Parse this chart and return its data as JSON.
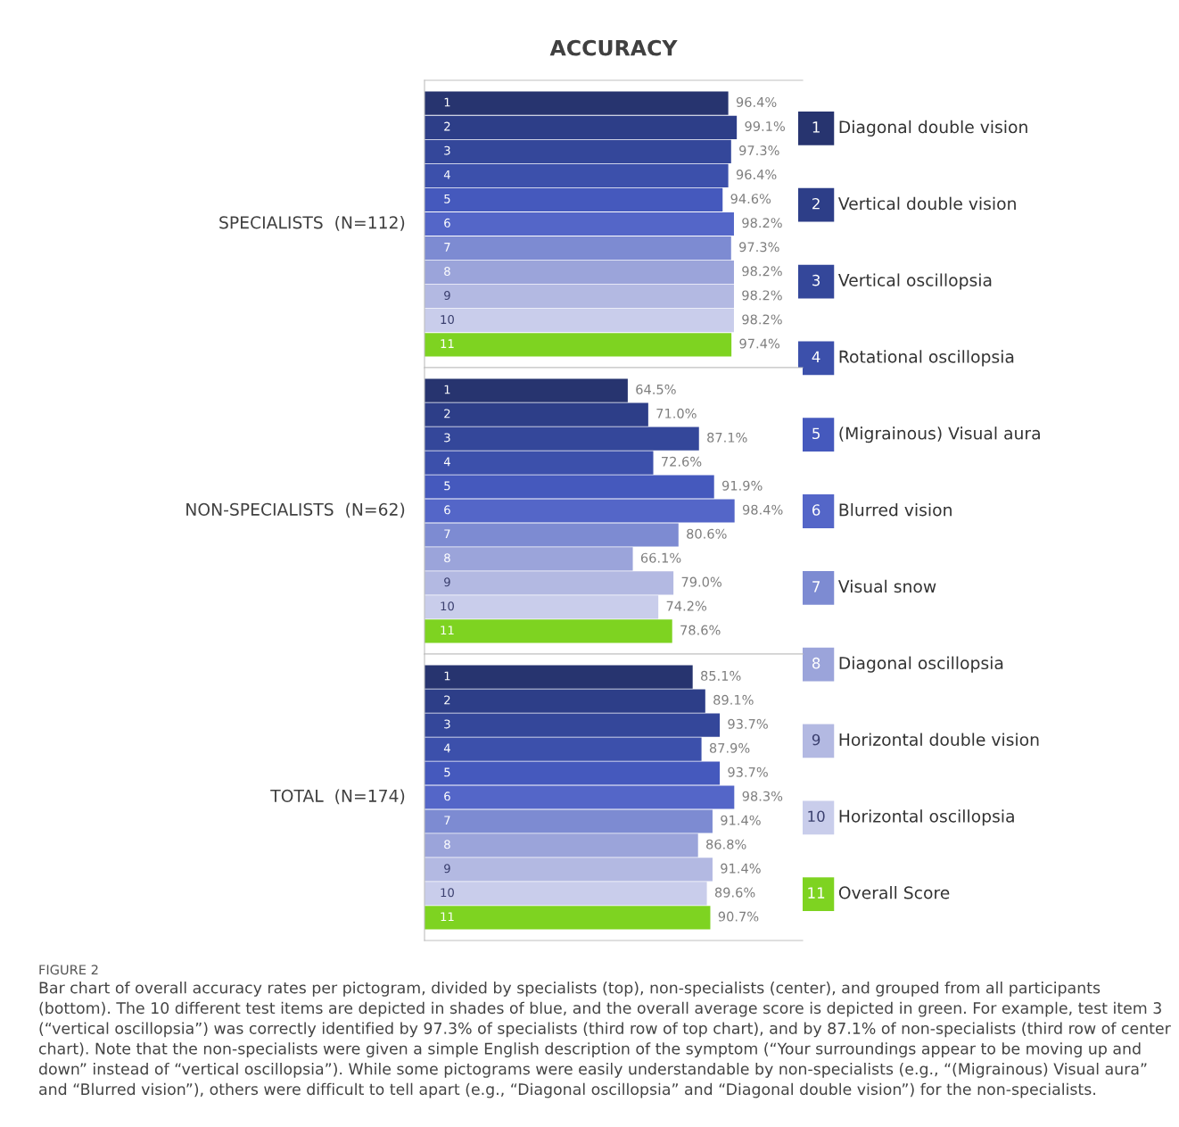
{
  "chart_data": [
    {
      "type": "bar",
      "orientation": "horizontal",
      "title": "ACCURACY",
      "ylabel": "SPECIALISTS  (N=112)",
      "categories": [
        "1",
        "2",
        "3",
        "4",
        "5",
        "6",
        "7",
        "8",
        "9",
        "10",
        "11"
      ],
      "series": [
        {
          "name": "Diagonal double vision",
          "color": "#27346f",
          "values": [
            96.4,
            null,
            null,
            null,
            null,
            null,
            null,
            null,
            null,
            null,
            null
          ],
          "value_labels": [
            "96.4%",
            null,
            null,
            null,
            null,
            null,
            null,
            null,
            null,
            null,
            null
          ]
        },
        {
          "name": "Vertical double vision",
          "color": "#2d3e88",
          "values": [
            null,
            99.1,
            null,
            null,
            null,
            null,
            null,
            null,
            null,
            null,
            null
          ],
          "value_labels": [
            null,
            "99.1%",
            null,
            null,
            null,
            null,
            null,
            null,
            null,
            null,
            null
          ]
        },
        {
          "name": "Vertical oscillopsia",
          "color": "#34479a",
          "values": [
            null,
            null,
            97.3,
            null,
            null,
            null,
            null,
            null,
            null,
            null,
            null
          ],
          "value_labels": [
            null,
            null,
            "97.3%",
            null,
            null,
            null,
            null,
            null,
            null,
            null,
            null
          ]
        },
        {
          "name": "Rotational oscillopsia",
          "color": "#3c50ab",
          "values": [
            null,
            null,
            null,
            96.4,
            null,
            null,
            null,
            null,
            null,
            null,
            null
          ],
          "value_labels": [
            null,
            null,
            null,
            "96.4%",
            null,
            null,
            null,
            null,
            null,
            null,
            null
          ]
        },
        {
          "name": "(Migrainous) Visual aura",
          "color": "#4559bd",
          "values": [
            null,
            null,
            null,
            null,
            94.6,
            null,
            null,
            null,
            null,
            null,
            null
          ],
          "value_labels": [
            null,
            null,
            null,
            null,
            "94.6%",
            null,
            null,
            null,
            null,
            null,
            null
          ]
        },
        {
          "name": "Blurred vision",
          "color": "#5466c8",
          "values": [
            null,
            null,
            null,
            null,
            null,
            98.2,
            null,
            null,
            null,
            null,
            null
          ],
          "value_labels": [
            null,
            null,
            null,
            null,
            null,
            "98.2%",
            null,
            null,
            null,
            null,
            null
          ]
        },
        {
          "name": "Visual snow",
          "color": "#7d8bd2",
          "values": [
            null,
            null,
            null,
            null,
            null,
            null,
            97.3,
            null,
            null,
            null,
            null
          ],
          "value_labels": [
            null,
            null,
            null,
            null,
            null,
            null,
            "97.3%",
            null,
            null,
            null,
            null
          ]
        },
        {
          "name": "Diagonal oscillopsia",
          "color": "#9ba4da",
          "values": [
            null,
            null,
            null,
            null,
            null,
            null,
            null,
            98.2,
            null,
            null,
            null
          ],
          "value_labels": [
            null,
            null,
            null,
            null,
            null,
            null,
            null,
            "98.2%",
            null,
            null,
            null
          ]
        },
        {
          "name": "Horizontal double vision",
          "color": "#b3b9e2",
          "values": [
            null,
            null,
            null,
            null,
            null,
            null,
            null,
            null,
            98.2,
            null,
            null
          ],
          "value_labels": [
            null,
            null,
            null,
            null,
            null,
            null,
            null,
            null,
            "98.2%",
            null,
            null
          ]
        },
        {
          "name": "Horizontal oscillopsia",
          "color": "#c9cdeb",
          "values": [
            null,
            null,
            null,
            null,
            null,
            null,
            null,
            null,
            null,
            98.2,
            null
          ],
          "value_labels": [
            null,
            null,
            null,
            null,
            null,
            null,
            null,
            null,
            null,
            "98.2%",
            null
          ]
        },
        {
          "name": "Overall Score",
          "color": "#7ed321",
          "values": [
            null,
            null,
            null,
            null,
            null,
            null,
            null,
            null,
            null,
            null,
            97.4
          ],
          "value_labels": [
            null,
            null,
            null,
            null,
            null,
            null,
            null,
            null,
            null,
            null,
            "97.4%"
          ]
        }
      ],
      "legend": "right",
      "xlim": [
        0,
        120
      ],
      "tick_labels": false
    },
    {
      "type": "bar",
      "orientation": "horizontal",
      "ylabel": "NON-SPECIALISTS  (N=62)",
      "categories": [
        "1",
        "2",
        "3",
        "4",
        "5",
        "6",
        "7",
        "8",
        "9",
        "10",
        "11"
      ],
      "values": [
        64.5,
        71.0,
        87.1,
        72.6,
        91.9,
        98.4,
        80.6,
        66.1,
        79.0,
        74.2,
        78.6
      ],
      "value_labels": [
        "64.5%",
        "71.0%",
        "87.1%",
        "72.6%",
        "91.9%",
        "98.4%",
        "80.6%",
        "66.1%",
        "79.0%",
        "74.2%",
        "78.6%"
      ],
      "colors": [
        "#27346f",
        "#2d3e88",
        "#34479a",
        "#3c50ab",
        "#4559bd",
        "#5466c8",
        "#7d8bd2",
        "#9ba4da",
        "#b3b9e2",
        "#c9cdeb",
        "#7ed321"
      ],
      "xlim": [
        0,
        120
      ],
      "tick_labels": false
    },
    {
      "type": "bar",
      "orientation": "horizontal",
      "ylabel": "TOTAL  (N=174)",
      "categories": [
        "1",
        "2",
        "3",
        "4",
        "5",
        "6",
        "7",
        "8",
        "9",
        "10",
        "11"
      ],
      "values": [
        85.1,
        89.1,
        93.7,
        87.9,
        93.7,
        98.3,
        91.4,
        86.8,
        91.4,
        89.6,
        90.7
      ],
      "value_labels": [
        "85.1%",
        "89.1%",
        "93.7%",
        "87.9%",
        "93.7%",
        "98.3%",
        "91.4%",
        "86.8%",
        "91.4%",
        "89.6%",
        "90.7%"
      ],
      "colors": [
        "#27346f",
        "#2d3e88",
        "#34479a",
        "#3c50ab",
        "#4559bd",
        "#5466c8",
        "#7d8bd2",
        "#9ba4da",
        "#b3b9e2",
        "#c9cdeb",
        "#7ed321"
      ],
      "xlim": [
        0,
        120
      ],
      "tick_labels": false,
      "annotations": [
        "FIGURE 2",
        "Bar chart of overall accuracy rates per pictogram, divided by specialists (top), non-specialists (center), and grouped from all participants (bottom). The 10 different test items are depicted in shades of blue, and the overall average score is depicted in green. For example, test item 3 (“vertical oscillopsia”) was correctly identified by 97.3% of specialists (third row of top chart), and by 87.1% of non-specialists (third row of center chart). Note that the non-specialists were given a simple English description of the symptom (“Your surroundings appear to be moving up and down” instead of “vertical oscillopsia”). While some pictograms were easily understandable by non-specialists (e.g., “(Migrainous) Visual aura” and “Blurred vision”), others were difficult to tell apart (e.g., “Diagonal oscillopsia” and “Diagonal double vision”) for the non-specialists."
      ]
    }
  ]
}
